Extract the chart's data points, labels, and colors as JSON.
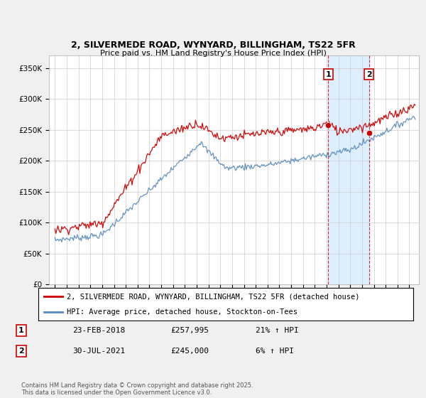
{
  "title1": "2, SILVERMEDE ROAD, WYNYARD, BILLINGHAM, TS22 5FR",
  "title2": "Price paid vs. HM Land Registry's House Price Index (HPI)",
  "ylabel_ticks": [
    "£0",
    "£50K",
    "£100K",
    "£150K",
    "£200K",
    "£250K",
    "£300K",
    "£350K"
  ],
  "ytick_values": [
    0,
    50000,
    100000,
    150000,
    200000,
    250000,
    300000,
    350000
  ],
  "ylim": [
    0,
    370000
  ],
  "legend_line1": "2, SILVERMEDE ROAD, WYNYARD, BILLINGHAM, TS22 5FR (detached house)",
  "legend_line2": "HPI: Average price, detached house, Stockton-on-Tees",
  "marker1_date": "23-FEB-2018",
  "marker1_price": "£257,995",
  "marker1_hpi": "21% ↑ HPI",
  "marker2_date": "30-JUL-2021",
  "marker2_price": "£245,000",
  "marker2_hpi": "6% ↑ HPI",
  "footnote": "Contains HM Land Registry data © Crown copyright and database right 2025.\nThis data is licensed under the Open Government Licence v3.0.",
  "red_color": "#cc0000",
  "blue_color": "#5588bb",
  "bg_color": "#f0f0f0",
  "plot_bg": "#ffffff",
  "shade_color": "#ddeeff",
  "marker1_x_year": 2018.13,
  "marker2_x_year": 2021.58,
  "marker1_y": 257995,
  "marker2_y": 245000,
  "xlim_left": 1994.5,
  "xlim_right": 2025.8
}
